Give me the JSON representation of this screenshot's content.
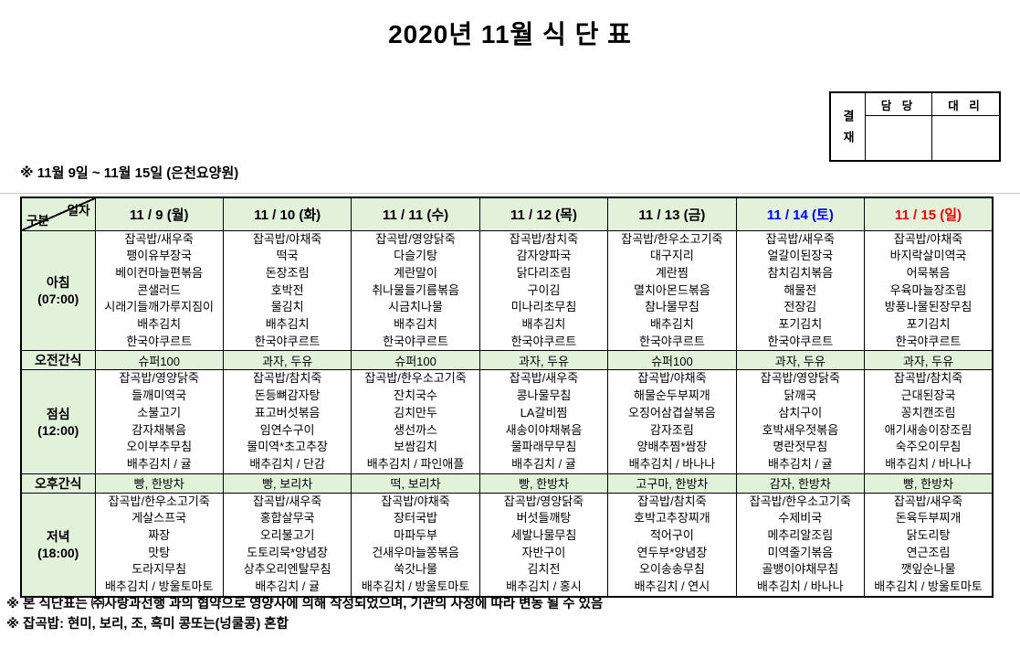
{
  "title": "2020년 11월 식 단 표",
  "subtitle": "※ 11월 9일 ~ 11월 15일 (은천요양원)",
  "approval": {
    "label": "결재",
    "columns": [
      "담 당",
      "대 리"
    ]
  },
  "colors": {
    "header_bg": "#E2F1DA",
    "saturday_text": "#0000EE",
    "sunday_text": "#EE0000",
    "weekday_text": "#000000"
  },
  "table": {
    "corner": {
      "top": "일자",
      "bottom": "구분"
    },
    "days": [
      {
        "label": "11 / 9 (월)",
        "color": "#000000"
      },
      {
        "label": "11 / 10 (화)",
        "color": "#000000"
      },
      {
        "label": "11 / 11 (수)",
        "color": "#000000"
      },
      {
        "label": "11 / 12 (목)",
        "color": "#000000"
      },
      {
        "label": "11 / 13 (금)",
        "color": "#000000"
      },
      {
        "label": "11 / 14 (토)",
        "color": "#0000EE"
      },
      {
        "label": "11 / 15 (일)",
        "color": "#EE0000"
      }
    ],
    "rows": [
      {
        "type": "meal",
        "label": "아침",
        "time": "(07:00)",
        "cells": [
          [
            "잡곡밥/새우죽",
            "팽이유부장국",
            "베이컨마늘편볶음",
            "콘샐러드",
            "시래기들깨가루지짐이",
            "배추김치",
            "한국야쿠르트"
          ],
          [
            "잡곡밥/야채죽",
            "떡국",
            "돈장조림",
            "호박전",
            "물김치",
            "배추김치",
            "한국야쿠르트"
          ],
          [
            "잡곡밥/영양닭죽",
            "다슬기탕",
            "계란말이",
            "취나물들기름볶음",
            "시금치나물",
            "배추김치",
            "한국야쿠르트"
          ],
          [
            "잡곡밥/참치죽",
            "감자양파국",
            "닭다리조림",
            "구이김",
            "미나리초무침",
            "배추김치",
            "한국야쿠르트"
          ],
          [
            "잡곡밥/한우소고기죽",
            "대구지리",
            "계란찜",
            "멸치아몬드볶음",
            "참나물무침",
            "배추김치",
            "한국야쿠르트"
          ],
          [
            "잡곡밥/새우죽",
            "얼갈이된장국",
            "참치김치볶음",
            "해물전",
            "전장김",
            "포기김치",
            "한국야쿠르트"
          ],
          [
            "잡곡밥/야채죽",
            "바지락살미역국",
            "어묵볶음",
            "우육마늘장조림",
            "방풍나물된장무침",
            "포기김치",
            "한국야쿠르트"
          ]
        ]
      },
      {
        "type": "snack",
        "label": "오전간식",
        "cells": [
          "슈퍼100",
          "과자, 두유",
          "슈퍼100",
          "과자, 두유",
          "슈퍼100",
          "과자, 두유",
          "과자, 두유"
        ]
      },
      {
        "type": "meal",
        "label": "점심",
        "time": "(12:00)",
        "cells": [
          [
            "잡곡밥/영양닭죽",
            "들깨미역국",
            "소불고기",
            "감자채볶음",
            "오이부추무침",
            "배추김치 / 귤"
          ],
          [
            "잡곡밥/참치죽",
            "돈등뼈감자탕",
            "표고버섯볶음",
            "임연수구이",
            "물미역*초고추장",
            "배추김치 / 단감"
          ],
          [
            "잡곡밥/한우소고기죽",
            "잔치국수",
            "김치만두",
            "생선까스",
            "보쌈김치",
            "배추김치 / 파인애플"
          ],
          [
            "잡곡밥/새우죽",
            "콩나물무침",
            "LA갈비찜",
            "새송이야채볶음",
            "물파래무무침",
            "배추김치 / 귤"
          ],
          [
            "잡곡밥/야채죽",
            "해물순두부찌개",
            "오징어삼겹살볶음",
            "감자조림",
            "양배추찜*쌈장",
            "배추김치 / 바나나"
          ],
          [
            "잡곡밥/영양닭죽",
            "닭깨국",
            "삼치구이",
            "호박새우젓볶음",
            "명란젓무침",
            "배추김치 / 귤"
          ],
          [
            "잡곡밥/참치죽",
            "근대된장국",
            "꽁치캔조림",
            "애기새송이장조림",
            "숙주오이무침",
            "배추김치 / 바나나"
          ]
        ]
      },
      {
        "type": "snack",
        "label": "오후간식",
        "cells": [
          "빵, 한방차",
          "빵, 보리차",
          "떡, 보리차",
          "빵, 한방차",
          "고구마, 한방차",
          "감자, 한방차",
          "빵, 한방차"
        ]
      },
      {
        "type": "meal",
        "label": "저녁",
        "time": "(18:00)",
        "cells": [
          [
            "잡곡밥/한우소고기죽",
            "게살스프국",
            "짜장",
            "맛탕",
            "도라지무침",
            "배추김치 / 방울토마토"
          ],
          [
            "잡곡밥/새우죽",
            "홍합살무국",
            "오리불고기",
            "도토리묵*양념장",
            "상추오리엔탈무침",
            "배추김치 / 귤"
          ],
          [
            "잡곡밥/야채죽",
            "장터국밥",
            "마파두부",
            "건새우마늘쫑볶음",
            "쑥갓나물",
            "배추김치 / 방울토마토"
          ],
          [
            "잡곡밥/영양닭죽",
            "버섯들깨탕",
            "세발나물무침",
            "자반구이",
            "김치전",
            "배추김치 / 홍시"
          ],
          [
            "잡곡밥/참치죽",
            "호박고추장찌개",
            "적어구이",
            "연두부*양념장",
            "오이송송무침",
            "배추김치 / 연시"
          ],
          [
            "잡곡밥/한우소고기죽",
            "수제비국",
            "메추리알조림",
            "미역줄기볶음",
            "골뱅이야채무침",
            "배추김치 / 바나나"
          ],
          [
            "잡곡밥/새우죽",
            "돈육두부찌개",
            "닭도리탕",
            "연근조림",
            "깻잎순나물",
            "배추김치 / 방울토마토"
          ]
        ]
      }
    ]
  },
  "footnotes": [
    "※ 본 식단표는 ㈜사랑과선행 과의 협약으로 영양사에 의해 작성되었으며, 기관의 사정에 따라 변동 될 수 있음",
    "※ 잡곡밥: 현미, 보리, 조, 흑미 콩또는(넝쿨콩) 혼합"
  ]
}
